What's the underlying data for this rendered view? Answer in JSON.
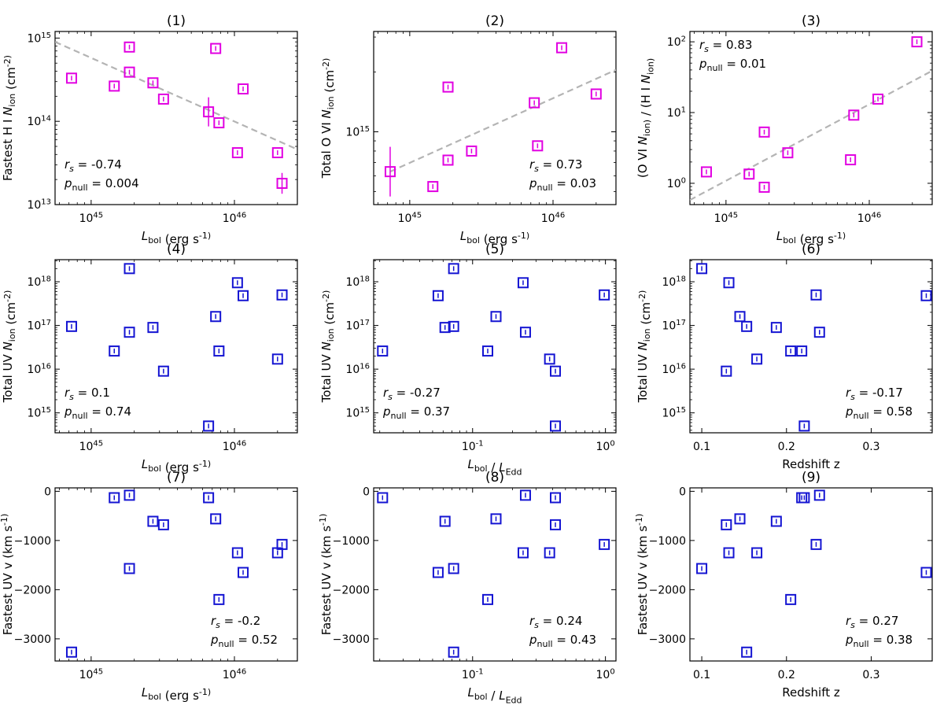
{
  "chart_data": [
    {
      "type": "scatter",
      "title": "(1)",
      "xlabel": "L_bol (erg s^-1)",
      "ylabel": "Fastest H I N_ion (cm^-2)",
      "xscale": "log",
      "yscale": "log",
      "xlim": [
        5.6e+44,
        2.75e+46
      ],
      "ylim": [
        10000000000000.0,
        1200000000000000.0
      ],
      "xticks": [
        {
          "v": 1e+45,
          "label": "10^45"
        },
        {
          "v": 1e+46,
          "label": "10^46"
        }
      ],
      "yticks": [
        {
          "v": 10000000000000.0,
          "label": "10^13"
        },
        {
          "v": 100000000000000.0,
          "label": "10^14"
        },
        {
          "v": 1000000000000000.0,
          "label": "10^15"
        }
      ],
      "color": "#e100e1",
      "fit_line": {
        "color": "#b4b4b4",
        "points": [
          [
            5.6e+44,
            900000000000000.0
          ],
          [
            2.75e+46,
            46000000000000.0
          ]
        ]
      },
      "stats": {
        "rs": "-0.74",
        "pnull": "0.004",
        "position": "bottom-left"
      },
      "points": [
        {
          "x": 7.3e+44,
          "y": 330000000000000.0
        },
        {
          "x": 1.45e+45,
          "y": 265000000000000.0
        },
        {
          "x": 1.85e+45,
          "y": 780000000000000.0
        },
        {
          "x": 1.85e+45,
          "y": 390000000000000.0
        },
        {
          "x": 2.7e+45,
          "y": 290000000000000.0
        },
        {
          "x": 3.2e+45,
          "y": 185000000000000.0
        },
        {
          "x": 6.6e+45,
          "y": 130000000000000.0,
          "err": 0.35
        },
        {
          "x": 7.4e+45,
          "y": 750000000000000.0
        },
        {
          "x": 7.8e+45,
          "y": 96000000000000.0
        },
        {
          "x": 1.05e+46,
          "y": 42000000000000.0
        },
        {
          "x": 1.15e+46,
          "y": 245000000000000.0
        },
        {
          "x": 2e+46,
          "y": 42000000000000.0
        },
        {
          "x": 2.15e+46,
          "y": 18000000000000.0,
          "err": 0.25
        }
      ]
    },
    {
      "type": "scatter",
      "title": "(2)",
      "xlabel": "L_bol (erg s^-1)",
      "ylabel": "Total O VI N_ion (cm^-2)",
      "xscale": "log",
      "yscale": "log",
      "xlim": [
        5.6e+44,
        2.75e+46
      ],
      "ylim": [
        430000000000000.0,
        3200000000000000.0
      ],
      "xticks": [
        {
          "v": 1e+45,
          "label": "10^45"
        },
        {
          "v": 1e+46,
          "label": "10^46"
        }
      ],
      "yticks": [
        {
          "v": 1000000000000000.0,
          "label": "10^15"
        }
      ],
      "color": "#e100e1",
      "fit_line": {
        "color": "#b4b4b4",
        "points": [
          [
            7.3e+44,
            630000000000000.0
          ],
          [
            2.75e+46,
            2050000000000000.0
          ]
        ]
      },
      "stats": {
        "rs": "0.73",
        "pnull": "0.03",
        "position": "bottom-right"
      },
      "points": [
        {
          "x": 7.3e+44,
          "y": 630000000000000.0,
          "err": 0.25
        },
        {
          "x": 1.45e+45,
          "y": 530000000000000.0
        },
        {
          "x": 1.85e+45,
          "y": 720000000000000.0
        },
        {
          "x": 1.85e+45,
          "y": 1680000000000000.0
        },
        {
          "x": 2.7e+45,
          "y": 800000000000000.0
        },
        {
          "x": 7.4e+45,
          "y": 1400000000000000.0
        },
        {
          "x": 7.8e+45,
          "y": 850000000000000.0
        },
        {
          "x": 1.15e+46,
          "y": 2650000000000000.0
        },
        {
          "x": 2e+46,
          "y": 1550000000000000.0
        }
      ]
    },
    {
      "type": "scatter",
      "title": "(3)",
      "xlabel": "L_bol (erg s^-1)",
      "ylabel": "(O VI N_ion) / (H I N_ion)",
      "xscale": "log",
      "yscale": "log",
      "xlim": [
        5.6e+44,
        2.75e+46
      ],
      "ylim": [
        0.5,
        140
      ],
      "xticks": [
        {
          "v": 1e+45,
          "label": "10^45"
        },
        {
          "v": 1e+46,
          "label": "10^46"
        }
      ],
      "yticks": [
        {
          "v": 1,
          "label": "10^0"
        },
        {
          "v": 10,
          "label": "10^1"
        },
        {
          "v": 100,
          "label": "10^2"
        }
      ],
      "color": "#e100e1",
      "fit_line": {
        "color": "#b4b4b4",
        "points": [
          [
            5.6e+44,
            0.58
          ],
          [
            2.75e+46,
            39
          ]
        ]
      },
      "stats": {
        "rs": "0.83",
        "pnull": "0.01",
        "position": "top-left"
      },
      "points": [
        {
          "x": 7.3e+44,
          "y": 1.45
        },
        {
          "x": 1.45e+45,
          "y": 1.35
        },
        {
          "x": 1.85e+45,
          "y": 0.88
        },
        {
          "x": 1.85e+45,
          "y": 5.3
        },
        {
          "x": 2.7e+45,
          "y": 2.7
        },
        {
          "x": 7.4e+45,
          "y": 2.15
        },
        {
          "x": 7.8e+45,
          "y": 9.2
        },
        {
          "x": 1.15e+46,
          "y": 15.5
        },
        {
          "x": 2.15e+46,
          "y": 100
        }
      ]
    },
    {
      "type": "scatter",
      "title": "(4)",
      "xlabel": "L_bol (erg s^-1)",
      "ylabel": "Total UV N_ion (cm^-2)",
      "xscale": "log",
      "yscale": "log",
      "xlim": [
        5.6e+44,
        2.75e+46
      ],
      "ylim": [
        350000000000000.0,
        3.2e+18
      ],
      "xticks": [
        {
          "v": 1e+45,
          "label": "10^45"
        },
        {
          "v": 1e+46,
          "label": "10^46"
        }
      ],
      "yticks": [
        {
          "v": 1000000000000000.0,
          "label": "10^15"
        },
        {
          "v": 1e+16,
          "label": "10^16"
        },
        {
          "v": 1e+17,
          "label": "10^17"
        },
        {
          "v": 1e+18,
          "label": "10^18"
        }
      ],
      "color": "#1414d2",
      "stats": {
        "rs": "0.1",
        "pnull": "0.74",
        "position": "bottom-left"
      },
      "points": [
        {
          "x": 7.3e+44,
          "y": 9.5e+16
        },
        {
          "x": 1.45e+45,
          "y": 2.6e+16
        },
        {
          "x": 1.85e+45,
          "y": 2e+18
        },
        {
          "x": 1.85e+45,
          "y": 7e+16
        },
        {
          "x": 2.7e+45,
          "y": 9e+16
        },
        {
          "x": 3.2e+45,
          "y": 9000000000000000.0
        },
        {
          "x": 6.6e+45,
          "y": 500000000000000.0
        },
        {
          "x": 7.4e+45,
          "y": 1.6e+17
        },
        {
          "x": 7.8e+45,
          "y": 2.6e+16
        },
        {
          "x": 1.05e+46,
          "y": 9.5e+17
        },
        {
          "x": 1.15e+46,
          "y": 4.8e+17
        },
        {
          "x": 2e+46,
          "y": 1.7e+16
        },
        {
          "x": 2.15e+46,
          "y": 5e+17
        }
      ]
    },
    {
      "type": "scatter",
      "title": "(5)",
      "xlabel": "L_bol / L_Edd",
      "ylabel": "Total UV N_ion (cm^-2)",
      "xscale": "log",
      "yscale": "log",
      "xlim": [
        0.018,
        1.2
      ],
      "ylim": [
        350000000000000.0,
        3.2e+18
      ],
      "xticks": [
        {
          "v": 0.1,
          "label": "10^-1"
        },
        {
          "v": 1,
          "label": "10^0"
        }
      ],
      "yticks": [
        {
          "v": 1000000000000000.0,
          "label": "10^15"
        },
        {
          "v": 1e+16,
          "label": "10^16"
        },
        {
          "v": 1e+17,
          "label": "10^17"
        },
        {
          "v": 1e+18,
          "label": "10^18"
        }
      ],
      "color": "#1414d2",
      "stats": {
        "rs": "-0.27",
        "pnull": "0.37",
        "position": "bottom-left"
      },
      "points": [
        {
          "x": 0.021,
          "y": 2.6e+16
        },
        {
          "x": 0.055,
          "y": 4.8e+17
        },
        {
          "x": 0.062,
          "y": 9e+16
        },
        {
          "x": 0.072,
          "y": 2e+18
        },
        {
          "x": 0.072,
          "y": 9.5e+16
        },
        {
          "x": 0.13,
          "y": 2.6e+16
        },
        {
          "x": 0.15,
          "y": 1.6e+17
        },
        {
          "x": 0.24,
          "y": 9.5e+17
        },
        {
          "x": 0.25,
          "y": 7e+16
        },
        {
          "x": 0.38,
          "y": 1.7e+16
        },
        {
          "x": 0.42,
          "y": 9000000000000000.0
        },
        {
          "x": 0.42,
          "y": 500000000000000.0
        },
        {
          "x": 0.98,
          "y": 5e+17
        }
      ]
    },
    {
      "type": "scatter",
      "title": "(6)",
      "xlabel": "Redshift z",
      "ylabel": "Total UV N_ion (cm^-2)",
      "xscale": "linear",
      "yscale": "log",
      "xlim": [
        0.086,
        0.372
      ],
      "ylim": [
        350000000000000.0,
        3.2e+18
      ],
      "xticks": [
        {
          "v": 0.1,
          "label": "0.1"
        },
        {
          "v": 0.2,
          "label": "0.2"
        },
        {
          "v": 0.3,
          "label": "0.3"
        }
      ],
      "yticks": [
        {
          "v": 1000000000000000.0,
          "label": "10^15"
        },
        {
          "v": 1e+16,
          "label": "10^16"
        },
        {
          "v": 1e+17,
          "label": "10^17"
        },
        {
          "v": 1e+18,
          "label": "10^18"
        }
      ],
      "color": "#1414d2",
      "stats": {
        "rs": "-0.17",
        "pnull": "0.58",
        "position": "bottom-right"
      },
      "points": [
        {
          "x": 0.1,
          "y": 2e+18
        },
        {
          "x": 0.129,
          "y": 9000000000000000.0
        },
        {
          "x": 0.132,
          "y": 9.5e+17
        },
        {
          "x": 0.145,
          "y": 1.6e+17
        },
        {
          "x": 0.153,
          "y": 9.5e+16
        },
        {
          "x": 0.165,
          "y": 1.7e+16
        },
        {
          "x": 0.188,
          "y": 9e+16
        },
        {
          "x": 0.205,
          "y": 2.6e+16
        },
        {
          "x": 0.218,
          "y": 2.6e+16
        },
        {
          "x": 0.221,
          "y": 500000000000000.0
        },
        {
          "x": 0.235,
          "y": 5e+17
        },
        {
          "x": 0.239,
          "y": 7e+16
        },
        {
          "x": 0.365,
          "y": 4.8e+17
        }
      ]
    },
    {
      "type": "scatter",
      "title": "(7)",
      "xlabel": "L_bol (erg s^-1)",
      "ylabel": "Fastest UV v (km s^-1)",
      "xscale": "log",
      "yscale": "linear",
      "xlim": [
        5.6e+44,
        2.75e+46
      ],
      "ylim": [
        -3450,
        70
      ],
      "xticks": [
        {
          "v": 1e+45,
          "label": "10^45"
        },
        {
          "v": 1e+46,
          "label": "10^46"
        }
      ],
      "yticks": [
        {
          "v": 0,
          "label": "0"
        },
        {
          "v": -1000,
          "label": "−1000"
        },
        {
          "v": -2000,
          "label": "−2000"
        },
        {
          "v": -3000,
          "label": "−3000"
        }
      ],
      "color": "#1414d2",
      "stats": {
        "rs": "-0.2",
        "pnull": "0.52",
        "position": "bottom-right"
      },
      "points": [
        {
          "x": 7.3e+44,
          "y": -3270
        },
        {
          "x": 1.45e+45,
          "y": -130
        },
        {
          "x": 1.85e+45,
          "y": -80
        },
        {
          "x": 1.85e+45,
          "y": -1570
        },
        {
          "x": 2.7e+45,
          "y": -610
        },
        {
          "x": 3.2e+45,
          "y": -680
        },
        {
          "x": 6.6e+45,
          "y": -130
        },
        {
          "x": 7.4e+45,
          "y": -560
        },
        {
          "x": 7.8e+45,
          "y": -2200
        },
        {
          "x": 1.05e+46,
          "y": -1250
        },
        {
          "x": 1.15e+46,
          "y": -1650
        },
        {
          "x": 2e+46,
          "y": -1250
        },
        {
          "x": 2.15e+46,
          "y": -1080
        }
      ]
    },
    {
      "type": "scatter",
      "title": "(8)",
      "xlabel": "L_bol / L_Edd",
      "ylabel": "Fastest UV v (km s^-1)",
      "xscale": "log",
      "yscale": "linear",
      "xlim": [
        0.018,
        1.2
      ],
      "ylim": [
        -3450,
        70
      ],
      "xticks": [
        {
          "v": 0.1,
          "label": "10^-1"
        },
        {
          "v": 1,
          "label": "10^0"
        }
      ],
      "yticks": [
        {
          "v": 0,
          "label": "0"
        },
        {
          "v": -1000,
          "label": "−1000"
        },
        {
          "v": -2000,
          "label": "−2000"
        },
        {
          "v": -3000,
          "label": "−3000"
        }
      ],
      "color": "#1414d2",
      "stats": {
        "rs": "0.24",
        "pnull": "0.43",
        "position": "bottom-right"
      },
      "points": [
        {
          "x": 0.021,
          "y": -130
        },
        {
          "x": 0.055,
          "y": -1650
        },
        {
          "x": 0.062,
          "y": -610
        },
        {
          "x": 0.072,
          "y": -1570
        },
        {
          "x": 0.072,
          "y": -3270
        },
        {
          "x": 0.13,
          "y": -2200
        },
        {
          "x": 0.15,
          "y": -560
        },
        {
          "x": 0.24,
          "y": -1250
        },
        {
          "x": 0.25,
          "y": -80
        },
        {
          "x": 0.38,
          "y": -1250
        },
        {
          "x": 0.42,
          "y": -130
        },
        {
          "x": 0.42,
          "y": -680
        },
        {
          "x": 0.98,
          "y": -1080
        }
      ]
    },
    {
      "type": "scatter",
      "title": "(9)",
      "xlabel": "Redshift z",
      "ylabel": "Fastest UV v (km s^-1)",
      "xscale": "linear",
      "yscale": "linear",
      "xlim": [
        0.086,
        0.372
      ],
      "ylim": [
        -3450,
        70
      ],
      "xticks": [
        {
          "v": 0.1,
          "label": "0.1"
        },
        {
          "v": 0.2,
          "label": "0.2"
        },
        {
          "v": 0.3,
          "label": "0.3"
        }
      ],
      "yticks": [
        {
          "v": 0,
          "label": "0"
        },
        {
          "v": -1000,
          "label": "−1000"
        },
        {
          "v": -2000,
          "label": "−2000"
        },
        {
          "v": -3000,
          "label": "−3000"
        }
      ],
      "color": "#1414d2",
      "stats": {
        "rs": "0.27",
        "pnull": "0.38",
        "position": "bottom-right"
      },
      "points": [
        {
          "x": 0.1,
          "y": -1570
        },
        {
          "x": 0.129,
          "y": -680
        },
        {
          "x": 0.132,
          "y": -1250
        },
        {
          "x": 0.145,
          "y": -560
        },
        {
          "x": 0.153,
          "y": -3270
        },
        {
          "x": 0.165,
          "y": -1250
        },
        {
          "x": 0.188,
          "y": -610
        },
        {
          "x": 0.205,
          "y": -2200
        },
        {
          "x": 0.218,
          "y": -130
        },
        {
          "x": 0.221,
          "y": -130
        },
        {
          "x": 0.235,
          "y": -1080
        },
        {
          "x": 0.239,
          "y": -80
        },
        {
          "x": 0.365,
          "y": -1650
        }
      ]
    }
  ]
}
